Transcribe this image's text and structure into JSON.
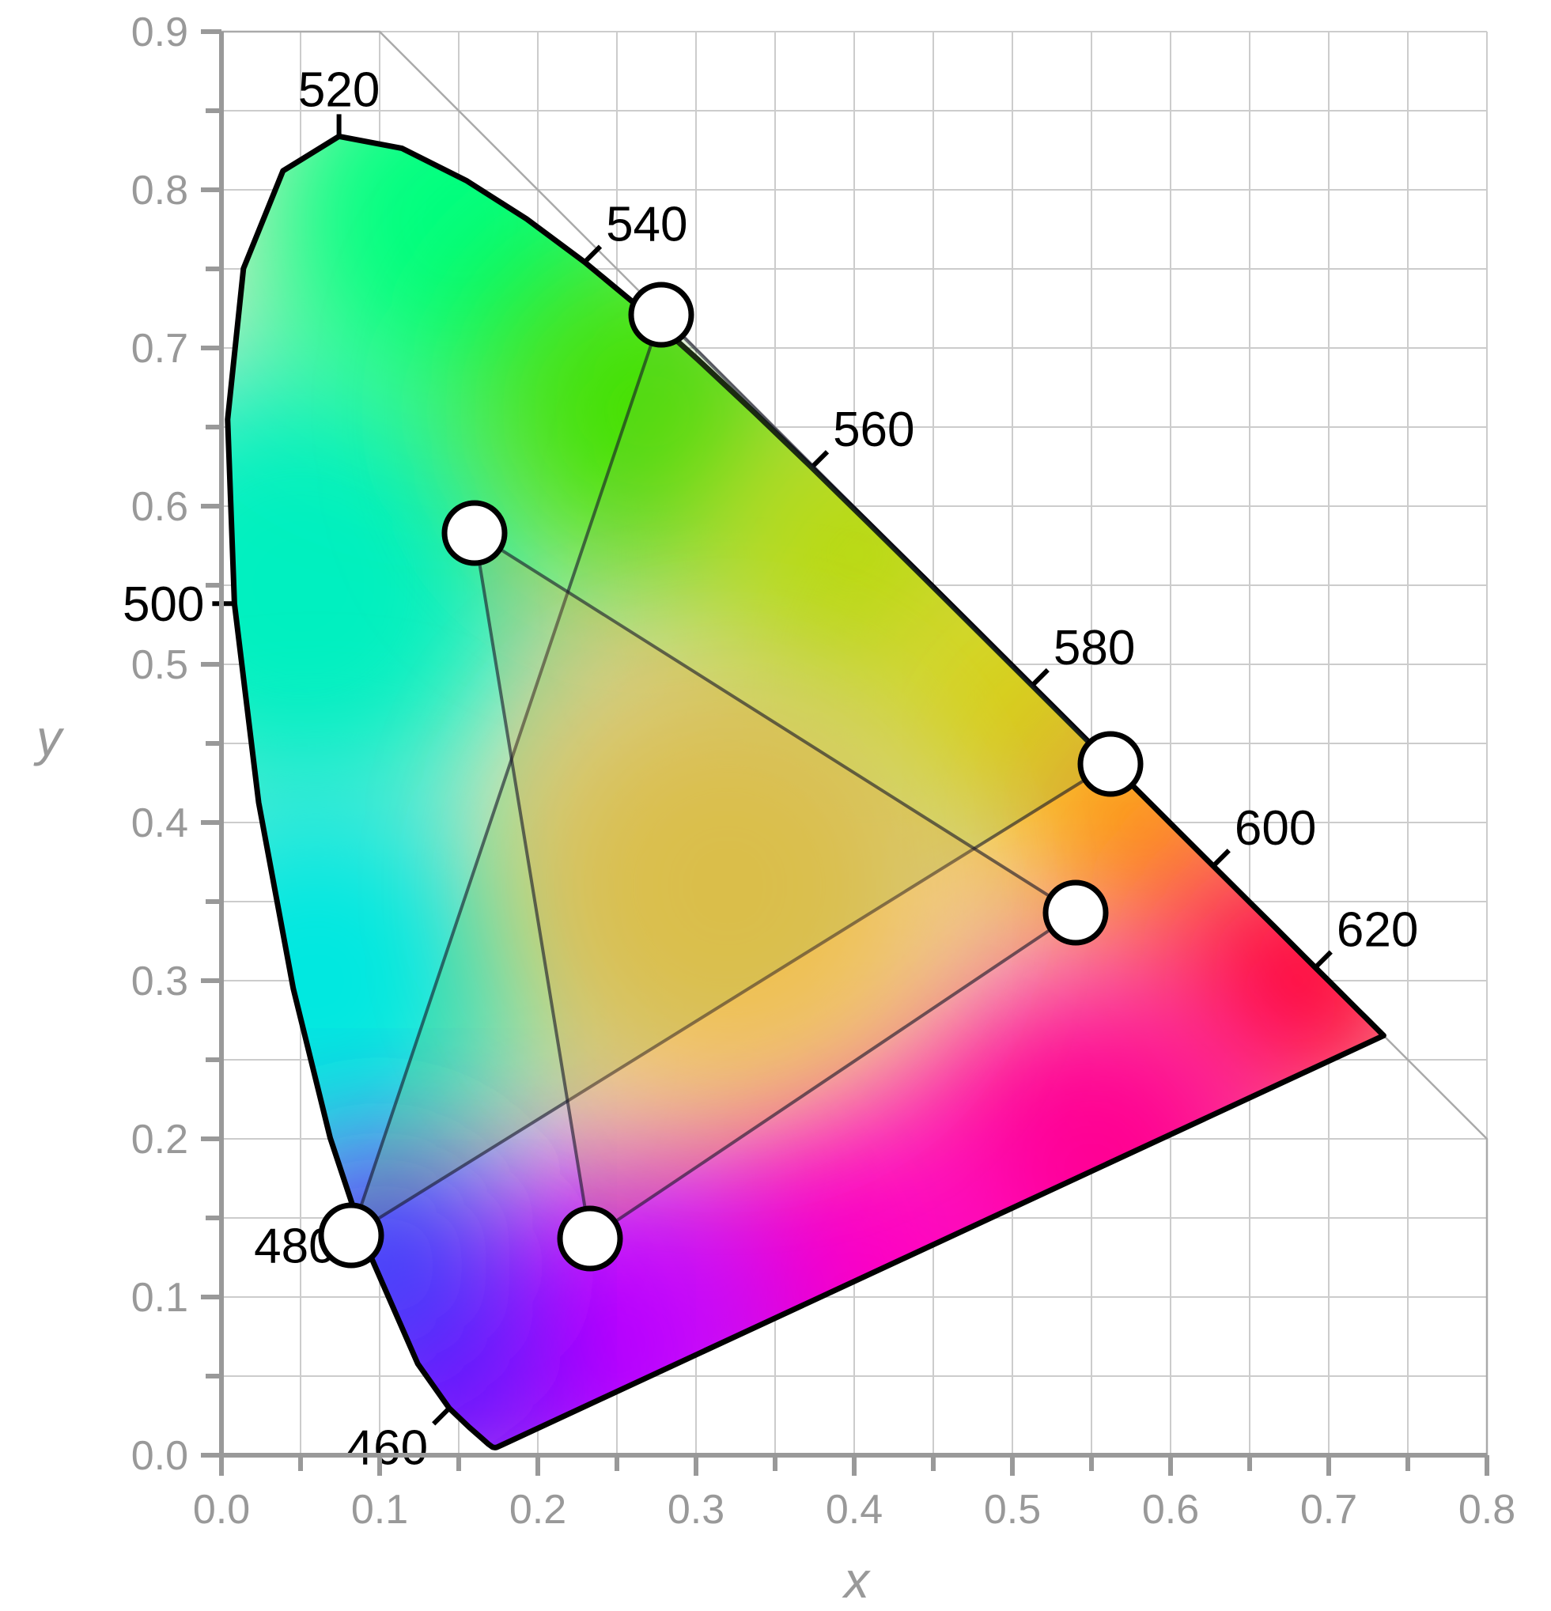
{
  "chart_data": {
    "type": "scatter",
    "title": "",
    "xlabel": "x",
    "ylabel": "y",
    "xlim": [
      0.0,
      0.8
    ],
    "ylim": [
      0.0,
      0.9
    ],
    "x_ticks": [
      "0.0",
      "0.1",
      "0.2",
      "0.3",
      "0.4",
      "0.5",
      "0.6",
      "0.7",
      "0.8"
    ],
    "y_ticks": [
      "0.0",
      "0.1",
      "0.2",
      "0.3",
      "0.4",
      "0.5",
      "0.6",
      "0.7",
      "0.8",
      "0.9"
    ],
    "grid": true,
    "spectral_locus": [
      [
        0.1741,
        0.005
      ],
      [
        0.173,
        0.0048
      ],
      [
        0.1714,
        0.0051
      ],
      [
        0.1689,
        0.0069
      ],
      [
        0.1644,
        0.0109
      ],
      [
        0.1566,
        0.0177
      ],
      [
        0.144,
        0.0297
      ],
      [
        0.1241,
        0.0578
      ],
      [
        0.0913,
        0.1327
      ],
      [
        0.0687,
        0.2007
      ],
      [
        0.0454,
        0.295
      ],
      [
        0.0235,
        0.4127
      ],
      [
        0.0082,
        0.5384
      ],
      [
        0.0039,
        0.6548
      ],
      [
        0.0139,
        0.7502
      ],
      [
        0.0389,
        0.812
      ],
      [
        0.0743,
        0.8338
      ],
      [
        0.1142,
        0.8262
      ],
      [
        0.1547,
        0.8059
      ],
      [
        0.1929,
        0.7816
      ],
      [
        0.2296,
        0.7543
      ],
      [
        0.2658,
        0.7243
      ],
      [
        0.3016,
        0.6923
      ],
      [
        0.3373,
        0.6589
      ],
      [
        0.3731,
        0.6245
      ],
      [
        0.4087,
        0.5896
      ],
      [
        0.4441,
        0.5547
      ],
      [
        0.4788,
        0.5202
      ],
      [
        0.5125,
        0.4866
      ],
      [
        0.5448,
        0.4544
      ],
      [
        0.5752,
        0.4242
      ],
      [
        0.6029,
        0.3965
      ],
      [
        0.627,
        0.3725
      ],
      [
        0.6482,
        0.3514
      ],
      [
        0.6658,
        0.334
      ],
      [
        0.6801,
        0.3197
      ],
      [
        0.6915,
        0.3083
      ],
      [
        0.7006,
        0.2993
      ],
      [
        0.7079,
        0.292
      ],
      [
        0.714,
        0.2859
      ],
      [
        0.719,
        0.2809
      ],
      [
        0.723,
        0.277
      ],
      [
        0.726,
        0.274
      ],
      [
        0.7283,
        0.2717
      ],
      [
        0.73,
        0.27
      ],
      [
        0.7311,
        0.2689
      ],
      [
        0.732,
        0.268
      ],
      [
        0.7327,
        0.2673
      ],
      [
        0.7334,
        0.2666
      ],
      [
        0.734,
        0.266
      ],
      [
        0.7344,
        0.2656
      ],
      [
        0.7346,
        0.2654
      ],
      [
        0.7347,
        0.2653
      ]
    ],
    "wavelength_labels": [
      {
        "label": "460",
        "x": 0.144,
        "y": 0.0297,
        "dx": -1,
        "dy": 1
      },
      {
        "label": "480",
        "x": 0.0913,
        "y": 0.1327,
        "dx": -1,
        "dy": 0
      },
      {
        "label": "500",
        "x": 0.0082,
        "y": 0.5384,
        "dx": -1,
        "dy": 0
      },
      {
        "label": "520",
        "x": 0.0743,
        "y": 0.8338,
        "dx": 0,
        "dy": -1
      },
      {
        "label": "540",
        "x": 0.2296,
        "y": 0.7543,
        "dx": 1,
        "dy": -1
      },
      {
        "label": "560",
        "x": 0.3731,
        "y": 0.6245,
        "dx": 1,
        "dy": -1
      },
      {
        "label": "580",
        "x": 0.5125,
        "y": 0.4866,
        "dx": 1,
        "dy": -1
      },
      {
        "label": "600",
        "x": 0.627,
        "y": 0.3725,
        "dx": 1,
        "dy": -1
      },
      {
        "label": "620",
        "x": 0.6915,
        "y": 0.3083,
        "dx": 1,
        "dy": -1
      }
    ],
    "series": [
      {
        "points": [
          [
            0.278,
            0.721
          ],
          [
            0.562,
            0.437
          ],
          [
            0.082,
            0.139
          ]
        ],
        "color": "#7CC24A"
      },
      {
        "points": [
          [
            0.16,
            0.583
          ],
          [
            0.54,
            0.343
          ],
          [
            0.233,
            0.137
          ]
        ],
        "color": "#E8A040"
      }
    ],
    "colors": {
      "blue": "#3030ff",
      "cyan": "#00e8e0",
      "green": "#00ff60",
      "yellow": "#e0e000",
      "red": "#ff0030",
      "magenta": "#ff00c0",
      "violet": "#7000ff",
      "white": "#f0e8d0"
    }
  }
}
